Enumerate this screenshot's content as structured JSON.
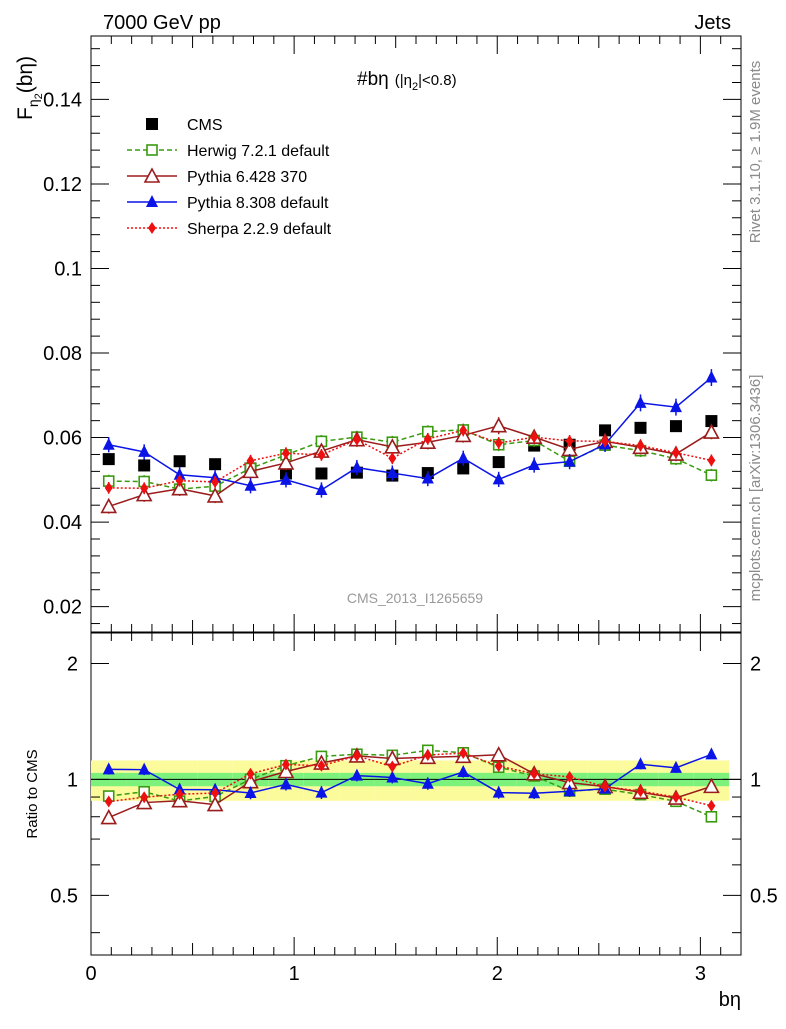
{
  "header": {
    "left": "7000 GeV pp",
    "right": "Jets"
  },
  "plot_title": {
    "main": "#bη",
    "cut": "(|η",
    "cut_sub": "2",
    "cut_end": "|<0.8)"
  },
  "side_text": {
    "rivet": "Rivet 3.1.10, ≥ 1.9M events",
    "mcplots": "mcplots.cern.ch [arXiv:1306.3436]"
  },
  "watermark": "CMS_2013_I1265659",
  "ylabel_main": {
    "base": "F",
    "sub": "η",
    "subsub": "2",
    "arg": "(bη)"
  },
  "ylabel_ratio": "Ratio to CMS",
  "xlabel": "bη",
  "colors": {
    "cms": "#000000",
    "herwig": "#3a9a10",
    "pythia6": "#9b1c1c",
    "pythia8": "#0a14e6",
    "sherpa": "#ee1010",
    "band_inner": "#7cf27c",
    "band_outer": "#fbfb9c"
  },
  "chart_data": {
    "type": "scatter",
    "x": [
      0.0873,
      0.2618,
      0.4363,
      0.6109,
      0.7854,
      0.9599,
      1.1345,
      1.309,
      1.4835,
      1.6581,
      1.8326,
      2.0071,
      2.1817,
      2.3562,
      2.5307,
      2.7053,
      2.8798,
      3.0543
    ],
    "xlim": [
      0,
      3.2
    ],
    "xticks": [
      0,
      1,
      2,
      3
    ],
    "xtick_labels": [
      "0",
      "1",
      "2",
      "3"
    ],
    "main_ylim": [
      0.014,
      0.155
    ],
    "main_yticks": [
      0.02,
      0.04,
      0.06,
      0.08,
      0.1,
      0.12,
      0.14
    ],
    "main_ytick_labels": [
      "0.02",
      "0.04",
      "0.06",
      "0.08",
      "0.1",
      "0.12",
      "0.14"
    ],
    "ratio_ylim": [
      0.35,
      2.4
    ],
    "ratio_scale": "log",
    "ratio_yticks": [
      0.5,
      1,
      2
    ],
    "ratio_ytick_labels": [
      "0.5",
      "1",
      "2"
    ],
    "band_inner": 0.04,
    "band_outer": 0.12,
    "legend_position": "top-left",
    "series": [
      {
        "name": "CMS",
        "key": "cms",
        "marker": "square-filled",
        "line": "none",
        "values": [
          0.0549,
          0.0534,
          0.0544,
          0.0537,
          0.0527,
          0.0515,
          0.0515,
          0.0517,
          0.051,
          0.0516,
          0.0527,
          0.0542,
          0.0581,
          0.0583,
          0.0617,
          0.0623,
          0.0627,
          0.0639
        ],
        "errors": [
          0,
          0,
          0,
          0,
          0,
          0,
          0,
          0,
          0,
          0,
          0,
          0,
          0,
          0,
          0,
          0,
          0,
          0
        ]
      },
      {
        "name": "Herwig 7.2.1 default",
        "key": "herwig",
        "marker": "square-open",
        "line": "dashed",
        "values": [
          0.0497,
          0.0496,
          0.0478,
          0.0485,
          0.0527,
          0.0559,
          0.0591,
          0.0601,
          0.0589,
          0.0614,
          0.0618,
          0.0583,
          0.0593,
          0.0544,
          0.0582,
          0.0569,
          0.055,
          0.0511
        ],
        "errors": [
          0.0015,
          0.0015,
          0.0015,
          0.0015,
          0.0015,
          0.0015,
          0.0015,
          0.0015,
          0.0015,
          0.0015,
          0.0015,
          0.0015,
          0.0015,
          0.0015,
          0.0015,
          0.0015,
          0.0015,
          0.0015
        ]
      },
      {
        "name": "Pythia 6.428 370",
        "key": "pythia6",
        "marker": "triangle-open",
        "line": "solid",
        "values": [
          0.0437,
          0.0465,
          0.0479,
          0.0462,
          0.052,
          0.054,
          0.0568,
          0.0595,
          0.0578,
          0.0589,
          0.0605,
          0.0628,
          0.0601,
          0.0572,
          0.0591,
          0.0577,
          0.0561,
          0.0613
        ],
        "errors": [
          0.0017,
          0.0017,
          0.0017,
          0.0017,
          0.0017,
          0.0017,
          0.0017,
          0.0017,
          0.0017,
          0.0017,
          0.0017,
          0.002,
          0.0017,
          0.0017,
          0.0017,
          0.0017,
          0.0017,
          0.0017
        ]
      },
      {
        "name": "Pythia 8.308 default",
        "key": "pythia8",
        "marker": "triangle-filled",
        "line": "solid",
        "values": [
          0.0583,
          0.0566,
          0.0512,
          0.0505,
          0.0486,
          0.05,
          0.0476,
          0.0529,
          0.0516,
          0.0503,
          0.0551,
          0.0501,
          0.0535,
          0.0543,
          0.0584,
          0.0682,
          0.0672,
          0.0742
        ],
        "errors": [
          0.0018,
          0.0018,
          0.0018,
          0.0018,
          0.0018,
          0.0018,
          0.0018,
          0.0018,
          0.0018,
          0.0018,
          0.0018,
          0.0018,
          0.0018,
          0.0018,
          0.0018,
          0.002,
          0.002,
          0.002
        ]
      },
      {
        "name": "Sherpa 2.2.9 default",
        "key": "sherpa",
        "marker": "diamond-filled",
        "line": "dotted",
        "values": [
          0.0481,
          0.048,
          0.0498,
          0.0495,
          0.0545,
          0.0563,
          0.0559,
          0.0595,
          0.0551,
          0.0597,
          0.0617,
          0.0587,
          0.0601,
          0.0592,
          0.0591,
          0.0581,
          0.0564,
          0.0546
        ],
        "errors": [
          0.0014,
          0.0014,
          0.0014,
          0.0014,
          0.0014,
          0.0014,
          0.0014,
          0.0014,
          0.0014,
          0.0014,
          0.0014,
          0.0014,
          0.0014,
          0.0014,
          0.0014,
          0.0014,
          0.0014,
          0.0014
        ]
      }
    ]
  }
}
